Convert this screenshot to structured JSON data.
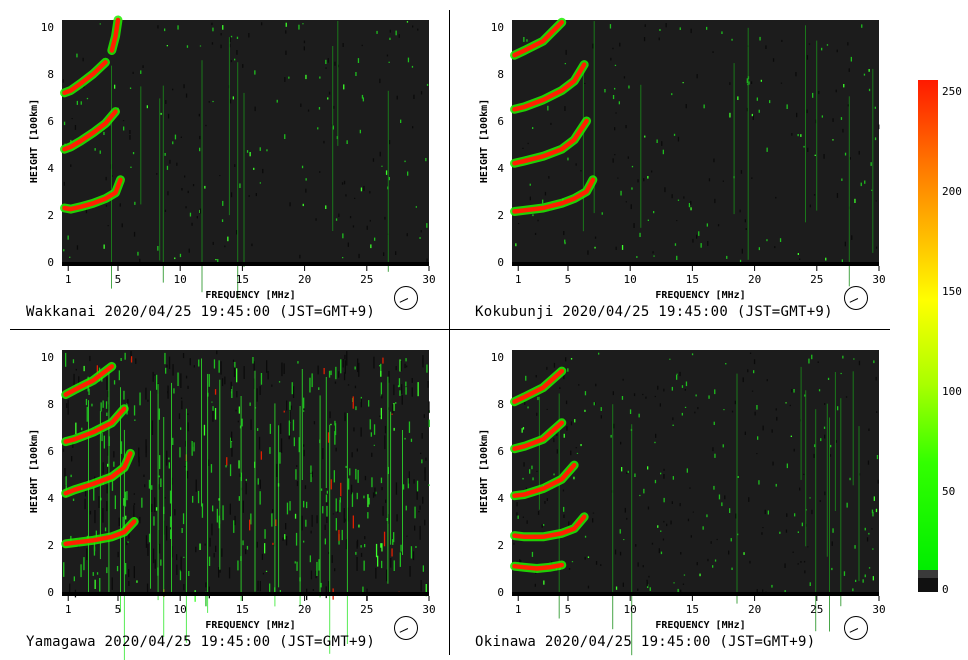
{
  "chart_data": [
    {
      "type": "heatmap",
      "station": "Wakkanai",
      "caption": "Wakkanai 2020/04/25 19:45:00 (JST=GMT+9)",
      "xlabel": "FREQUENCY [MHz]",
      "ylabel": "HEIGHT [100km]",
      "xlim": [
        0.5,
        30
      ],
      "ylim": [
        0,
        10.3
      ],
      "xticks": [
        1,
        5,
        10,
        15,
        20,
        25,
        30
      ],
      "yticks": [
        0,
        2,
        4,
        6,
        8,
        10
      ],
      "noise_level": 0.35,
      "traces": [
        {
          "x": [
            0.7,
            1.2,
            2.0,
            3.0,
            4.0,
            4.8,
            5.2
          ],
          "y": [
            2.3,
            2.25,
            2.35,
            2.5,
            2.7,
            2.95,
            3.5
          ]
        },
        {
          "x": [
            0.7,
            1.2,
            2.0,
            3.0,
            4.0,
            4.8
          ],
          "y": [
            4.8,
            4.9,
            5.15,
            5.5,
            5.9,
            6.4
          ]
        },
        {
          "x": [
            0.7,
            1.2,
            2.0,
            3.0,
            4.0
          ],
          "y": [
            7.2,
            7.3,
            7.6,
            8.0,
            8.5
          ]
        },
        {
          "x": [
            4.5,
            4.8,
            5.0
          ],
          "y": [
            9.0,
            9.6,
            10.3
          ]
        }
      ]
    },
    {
      "type": "heatmap",
      "station": "Kokubunji",
      "caption": "Kokubunji 2020/04/25 19:45:00 (JST=GMT+9)",
      "xlabel": "FREQUENCY [MHz]",
      "ylabel": "HEIGHT [100km]",
      "xlim": [
        0.5,
        30
      ],
      "ylim": [
        0,
        10.3
      ],
      "xticks": [
        1,
        5,
        10,
        15,
        20,
        25,
        30
      ],
      "yticks": [
        0,
        2,
        4,
        6,
        8,
        10
      ],
      "noise_level": 0.3,
      "traces": [
        {
          "x": [
            0.7,
            1.5,
            3.0,
            4.5,
            5.5,
            6.5,
            7.0
          ],
          "y": [
            2.15,
            2.2,
            2.3,
            2.5,
            2.7,
            3.0,
            3.5
          ]
        },
        {
          "x": [
            0.7,
            1.5,
            3.0,
            4.5,
            5.5,
            6.5
          ],
          "y": [
            4.2,
            4.3,
            4.5,
            4.8,
            5.2,
            6.0
          ]
        },
        {
          "x": [
            0.7,
            1.5,
            3.0,
            4.5,
            5.5,
            6.3
          ],
          "y": [
            6.5,
            6.6,
            6.9,
            7.3,
            7.7,
            8.4
          ]
        },
        {
          "x": [
            0.7,
            1.5,
            3.0,
            4.5
          ],
          "y": [
            8.8,
            9.0,
            9.4,
            10.2
          ]
        }
      ]
    },
    {
      "type": "heatmap",
      "station": "Yamagawa",
      "caption": "Yamagawa 2020/04/25 19:45:00 (JST=GMT+9)",
      "xlabel": "FREQUENCY [MHz]",
      "ylabel": "HEIGHT [100km]",
      "xlim": [
        0.5,
        30
      ],
      "ylim": [
        0,
        10.3
      ],
      "xticks": [
        1,
        5,
        10,
        15,
        20,
        25,
        30
      ],
      "yticks": [
        0,
        2,
        4,
        6,
        8,
        10
      ],
      "noise_level": 0.85,
      "traces": [
        {
          "x": [
            0.8,
            1.5,
            3.0,
            4.5,
            5.5,
            6.3
          ],
          "y": [
            2.05,
            2.1,
            2.2,
            2.35,
            2.55,
            3.0
          ]
        },
        {
          "x": [
            0.8,
            1.5,
            3.0,
            4.5,
            5.5,
            6.0
          ],
          "y": [
            4.2,
            4.35,
            4.6,
            4.9,
            5.3,
            5.9
          ]
        },
        {
          "x": [
            0.8,
            1.5,
            3.0,
            4.5,
            5.5
          ],
          "y": [
            6.4,
            6.5,
            6.8,
            7.2,
            7.8
          ]
        },
        {
          "x": [
            0.8,
            1.5,
            3.0,
            4.5
          ],
          "y": [
            8.4,
            8.6,
            9.0,
            9.6
          ]
        }
      ]
    },
    {
      "type": "heatmap",
      "station": "Okinawa",
      "caption": "Okinawa 2020/04/25 19:45:00 (JST=GMT+9)",
      "xlabel": "FREQUENCY [MHz]",
      "ylabel": "HEIGHT [100km]",
      "xlim": [
        0.5,
        30
      ],
      "ylim": [
        0,
        10.3
      ],
      "xticks": [
        1,
        5,
        10,
        15,
        20,
        25,
        30
      ],
      "yticks": [
        0,
        2,
        4,
        6,
        8,
        10
      ],
      "noise_level": 0.45,
      "traces": [
        {
          "x": [
            0.7,
            1.5,
            2.5,
            3.5,
            4.5
          ],
          "y": [
            1.1,
            1.05,
            1.0,
            1.05,
            1.15
          ]
        },
        {
          "x": [
            0.7,
            1.5,
            3.0,
            4.5,
            5.5,
            6.3
          ],
          "y": [
            2.4,
            2.35,
            2.35,
            2.5,
            2.7,
            3.2
          ]
        },
        {
          "x": [
            0.7,
            1.5,
            3.0,
            4.5,
            5.5
          ],
          "y": [
            4.1,
            4.15,
            4.4,
            4.8,
            5.4
          ]
        },
        {
          "x": [
            0.7,
            1.5,
            3.0,
            4.5
          ],
          "y": [
            6.1,
            6.2,
            6.5,
            7.2
          ]
        },
        {
          "x": [
            0.7,
            1.5,
            3.0,
            4.5
          ],
          "y": [
            8.1,
            8.3,
            8.7,
            9.4
          ]
        }
      ]
    }
  ],
  "colorbar": {
    "ticks": [
      0,
      50,
      100,
      150,
      200,
      250
    ],
    "max": 256,
    "colors": [
      "#00ee00",
      "#33ff00",
      "#aaff00",
      "#ffff00",
      "#ffcc00",
      "#ff7a00",
      "#ff1a00"
    ]
  },
  "colors": {
    "plot_bg": "#1c1c1c",
    "noise_dark": "#0a0a0a",
    "strong": "#ff2000",
    "mid": "#22ee00"
  }
}
